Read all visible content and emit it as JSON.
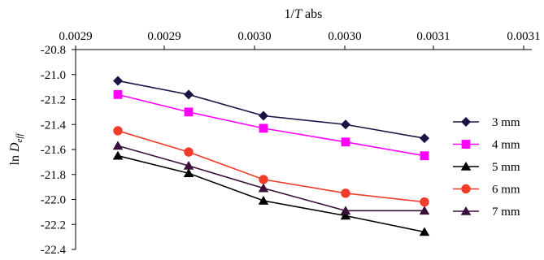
{
  "chart_data": {
    "type": "line",
    "xlabel": {
      "prefix": "1/",
      "var": "T",
      "suffix": " abs"
    },
    "ylabel": {
      "prefix": "ln",
      "var": "D",
      "sub": "eff"
    },
    "x_tick_labels": [
      "0.0029",
      "0.0029",
      "0.0030",
      "0.0030",
      "0.0031",
      "0.0031"
    ],
    "y_tick_labels": [
      "-20.8",
      "-21.0",
      "-21.2",
      "-21.4",
      "-21.6",
      "-21.8",
      "-22.0",
      "-22.2",
      "-22.4"
    ],
    "ylim": [
      -22.4,
      -20.8
    ],
    "y_ticks": [
      -20.8,
      -21.0,
      -21.2,
      -21.4,
      -21.6,
      -21.8,
      -22.0,
      -22.2,
      -22.4
    ],
    "x_axis_position": "top",
    "grid": false,
    "legend_position": "right",
    "series": [
      {
        "name": "3 mm",
        "marker": "diamond",
        "marker_color": "#1a1446",
        "line_color": "#1a1446",
        "values": [
          -21.05,
          -21.16,
          -21.33,
          -21.4,
          -21.51
        ]
      },
      {
        "name": "4 mm",
        "marker": "square",
        "marker_color": "#ff00ff",
        "line_color": "#ff00ff",
        "values": [
          -21.16,
          -21.3,
          -21.43,
          -21.54,
          -21.65
        ]
      },
      {
        "name": "5 mm",
        "marker": "triangle",
        "marker_color": "#000000",
        "line_color": "#000000",
        "values": [
          -21.65,
          -21.79,
          -22.01,
          -22.13,
          -22.26
        ]
      },
      {
        "name": "6 mm",
        "marker": "circle",
        "marker_color": "#f03c28",
        "line_color": "#f03c28",
        "values": [
          -21.45,
          -21.62,
          -21.84,
          -21.95,
          -22.02
        ]
      },
      {
        "name": "7 mm",
        "marker": "triangle",
        "marker_color": "#3a0f3a",
        "line_color": "#3a0f3a",
        "values": [
          -21.57,
          -21.73,
          -21.91,
          -22.09,
          -22.09
        ]
      }
    ]
  }
}
